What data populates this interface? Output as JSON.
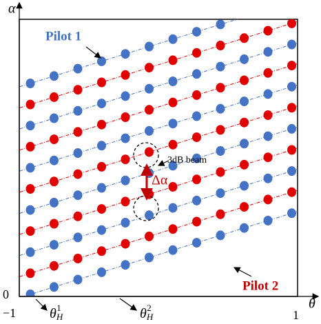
{
  "axes": {
    "y_label": "α",
    "x_label": "θ",
    "origin": "0",
    "x_min": "−1",
    "x_max": "1"
  },
  "annotations": {
    "pilot1": "Pilot 1",
    "pilot2": "Pilot 2",
    "beam": "3dB beam",
    "delta": "Δα",
    "theta_h1": {
      "base": "θ",
      "sub": "H",
      "sup": "1"
    },
    "theta_h2": {
      "base": "θ",
      "sub": "H",
      "sup": "2"
    }
  }
}
